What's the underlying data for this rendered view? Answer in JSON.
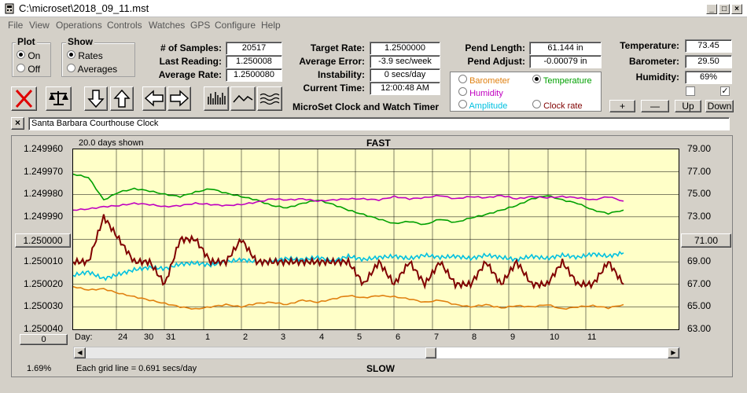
{
  "window": {
    "title": "C:\\microset\\2018_09_11.mst"
  },
  "menu": [
    "File",
    "View",
    "Operations",
    "Controls",
    "Watches",
    "GPS",
    "Configure",
    "Help"
  ],
  "plot_group": {
    "title": "Plot",
    "on": "On",
    "off": "Off",
    "selected": "On"
  },
  "show_group": {
    "title": "Show",
    "rates": "Rates",
    "averages": "Averages",
    "selected": "Rates"
  },
  "stats": {
    "samples_label": "# of Samples:",
    "samples": "20517",
    "last_label": "Last Reading:",
    "last": "1.250008",
    "avg_label": "Average Rate:",
    "avg": "1.2500080",
    "target_label": "Target Rate:",
    "target": "1.2500000",
    "avgerr_label": "Average Error:",
    "avgerr": "-3.9 sec/week",
    "instab_label": "Instability:",
    "instab": "0 secs/day",
    "time_label": "Current Time:",
    "time": "12:00:48 AM",
    "pendlen_label": "Pend Length:",
    "pendlen": "61.144 in",
    "pendadj_label": "Pend Adjust:",
    "pendadj": "-0.00079 in",
    "temp_label": "Temperature:",
    "temp": "73.45",
    "baro_label": "Barometer:",
    "baro": "29.50",
    "hum_label": "Humidity:",
    "hum": "69%"
  },
  "app_name": "MicroSet Clock and Watch Timer",
  "aux_options": [
    {
      "label": "Barometer",
      "color": "#e08010",
      "selected": false
    },
    {
      "label": "Temperature",
      "color": "#00a000",
      "selected": true
    },
    {
      "label": "Humidity",
      "color": "#c000c0",
      "selected": false
    },
    {
      "label": "Amplitude",
      "color": "#00c0e0",
      "selected": false
    },
    {
      "label": "Clock rate",
      "color": "#800000",
      "selected": false
    }
  ],
  "adjust_buttons": {
    "plus": "+",
    "minus": "—",
    "up": "Up",
    "down": "Down"
  },
  "clock_name": "Santa Barbara Courthouse Clock",
  "close_x": "×",
  "plot": {
    "days_shown": "20.0 days shown",
    "fast": "FAST",
    "slow": "SLOW",
    "grid_note": "Each grid line = 0.691 secs/day",
    "percent": "1.69%",
    "day_label": "Day:",
    "left_center_btn": "1.250000",
    "right_center_btn": "71.00",
    "bottom_btn": "0",
    "left_ticks": [
      "1.249960",
      "1.249970",
      "1.249980",
      "1.249990",
      "1.250000",
      "1.250010",
      "1.250020",
      "1.250030",
      "1.250040"
    ],
    "right_ticks": [
      "79.00",
      "77.00",
      "75.00",
      "73.00",
      "71.00",
      "69.00",
      "67.00",
      "65.00",
      "63.00"
    ],
    "day_ticks": [
      "24",
      "30",
      "31",
      "1",
      "2",
      "3",
      "4",
      "5",
      "6",
      "7",
      "8",
      "9",
      "10",
      "11"
    ]
  },
  "chart_data": {
    "type": "line",
    "ylim": [
      1.24996,
      1.25004
    ],
    "y2lim": [
      63,
      79
    ],
    "series": [
      {
        "name": "Temperature",
        "color": "#00a000",
        "axis": "right",
        "values": [
          76.8,
          76.5,
          74.5,
          75.2,
          75.5,
          75.3,
          75.0,
          74.8,
          75.2,
          75.5,
          75.1,
          74.8,
          74.5,
          74.0,
          73.8,
          74.2,
          74.5,
          74.1,
          73.6,
          73.2,
          72.8,
          72.4,
          72.6,
          72.3,
          72.8,
          72.5,
          72.9,
          73.2,
          73.6,
          74.0,
          74.6,
          74.9,
          74.5,
          74.2,
          73.6,
          73.3,
          73.6
        ]
      },
      {
        "name": "Humidity",
        "color": "#c000c0",
        "axis": "right",
        "values": [
          73.6,
          73.7,
          73.9,
          74.0,
          74.2,
          74.1,
          73.9,
          74.0,
          74.2,
          74.1,
          74.0,
          74.1,
          74.3,
          74.6,
          74.5,
          74.6,
          74.4,
          74.5,
          74.6,
          74.6,
          74.5,
          74.8,
          74.6,
          74.7,
          74.9,
          74.6,
          74.8,
          74.7,
          74.9,
          74.6,
          74.8,
          74.7,
          74.8,
          74.7,
          74.5,
          74.8,
          74.4
        ]
      },
      {
        "name": "Amplitude",
        "color": "#00c0e0",
        "axis": "right",
        "values": [
          67.8,
          68.1,
          67.5,
          67.9,
          68.3,
          68.5,
          68.4,
          68.8,
          68.9,
          68.7,
          69.0,
          69.2,
          69.0,
          69.1,
          69.3,
          69.2,
          69.4,
          69.1,
          69.5,
          69.2,
          69.4,
          69.5,
          69.3,
          69.6,
          69.4,
          69.5,
          69.3,
          69.6,
          69.4,
          69.2,
          69.5,
          69.3,
          69.6,
          69.4,
          69.7,
          69.5,
          69.8
        ]
      },
      {
        "name": "Barometer",
        "color": "#e08010",
        "axis": "right",
        "values": [
          66.8,
          66.5,
          66.6,
          66.2,
          65.9,
          65.6,
          65.3,
          65.0,
          64.8,
          65.0,
          65.2,
          65.0,
          65.3,
          65.4,
          65.2,
          65.6,
          65.4,
          65.7,
          66.0,
          65.8,
          66.0,
          65.9,
          65.7,
          65.4,
          65.6,
          65.2,
          65.0,
          65.2,
          64.9,
          65.1,
          65.0,
          65.2,
          64.8,
          65.0,
          65.1,
          64.9,
          65.2
        ]
      },
      {
        "name": "Clock rate",
        "color": "#800000",
        "axis": "left",
        "values": [
          1.25001,
          1.25001,
          1.24999,
          1.25,
          1.25001,
          1.25001,
          1.25002,
          1.25,
          1.25,
          1.25001,
          1.25001,
          1.25,
          1.25001,
          1.25001,
          1.25001,
          1.25001,
          1.25001,
          1.25001,
          1.25001,
          1.25002,
          1.25001,
          1.25002,
          1.25001,
          1.25002,
          1.25001,
          1.25002,
          1.25002,
          1.25001,
          1.25002,
          1.25001,
          1.25002,
          1.25002,
          1.25001,
          1.25002,
          1.25002,
          1.25001,
          1.25002
        ]
      }
    ]
  }
}
